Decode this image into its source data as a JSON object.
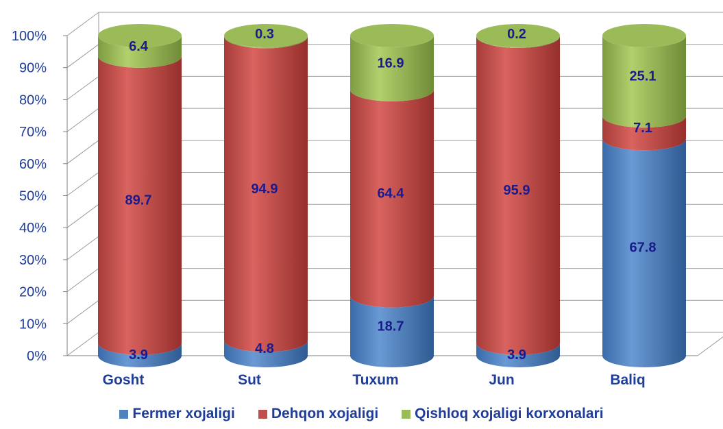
{
  "chart_data": {
    "type": "bar",
    "stacked": true,
    "percent_stacked": true,
    "style": "3d-cylinder",
    "categories": [
      "Gosht",
      "Sut",
      "Tuxum",
      "Jun",
      "Baliq"
    ],
    "series": [
      {
        "name": "Fermer xojaligi",
        "color": "#4f81bd",
        "values": [
          3.9,
          4.8,
          18.7,
          3.9,
          67.8
        ]
      },
      {
        "name": "Dehqon xojaligi",
        "color": "#c0504d",
        "values": [
          89.7,
          94.9,
          64.4,
          95.9,
          7.1
        ]
      },
      {
        "name": "Qishloq xojaligi korxonalari",
        "color": "#9bbb59",
        "values": [
          6.4,
          0.3,
          16.9,
          0.2,
          25.1
        ]
      }
    ],
    "yticks": [
      "0%",
      "10%",
      "20%",
      "30%",
      "40%",
      "50%",
      "60%",
      "70%",
      "80%",
      "90%",
      "100%"
    ],
    "ylim": [
      0,
      100
    ],
    "grid": true,
    "legend_position": "bottom"
  }
}
